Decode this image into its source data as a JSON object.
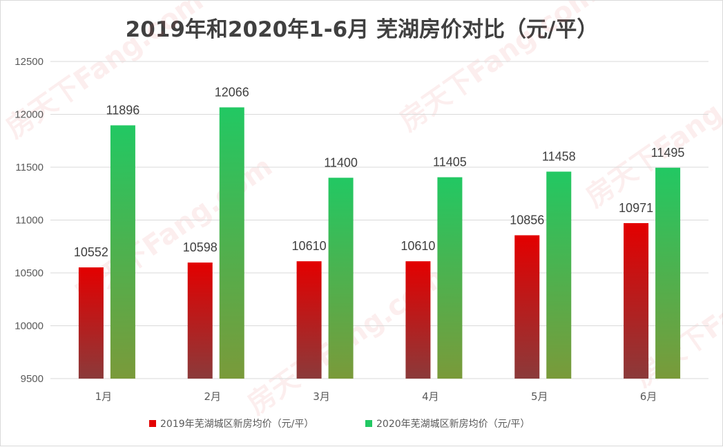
{
  "chart_data": {
    "type": "bar",
    "title": "2019年和2020年1-6月 芜湖房价对比（元/平）",
    "categories": [
      "1月",
      "2月",
      "3月",
      "4月",
      "5月",
      "6月"
    ],
    "series": [
      {
        "name": "2019年芜湖城区新房均价（元/平）",
        "values": [
          10552,
          10598,
          10610,
          10610,
          10856,
          10971
        ]
      },
      {
        "name": "2020年芜湖城区新房均价（元/平）",
        "values": [
          11896,
          12066,
          11400,
          11405,
          11458,
          11495
        ]
      }
    ],
    "ylim": [
      9500,
      12500
    ],
    "yticks": [
      9500,
      10000,
      10500,
      11000,
      11500,
      12000,
      12500
    ],
    "xlabel": "",
    "ylabel": "",
    "grid": true,
    "legend": "bottom",
    "colors": {
      "s2019_top": "#e30000",
      "s2019_bottom": "#8b3a3a",
      "s2020_top": "#22c863",
      "s2020_bottom": "#7a9a3a"
    }
  },
  "watermark": "房天下Fang.com"
}
